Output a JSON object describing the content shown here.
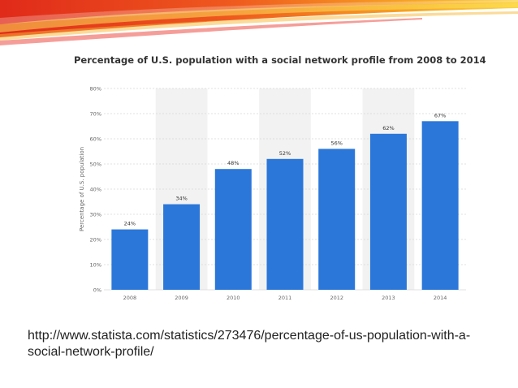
{
  "slide": {
    "source_url": "http://www.statista.com/statistics/273476/percentage-of-us-population-with-a-social-network-profile/"
  },
  "colors": {
    "bar": "#2b77d9",
    "banner_red": "#e8291c",
    "banner_orange": "#f6a21c",
    "banner_yellow": "#fbd63c",
    "band": "#f2f2f2"
  },
  "chart_data": {
    "type": "bar",
    "title": "Percentage of U.S. population with a social network profile from 2008 to 2014",
    "xlabel": "",
    "ylabel": "Percentage of U.S. population",
    "categories": [
      "2008",
      "2009",
      "2010",
      "2011",
      "2012",
      "2013",
      "2014"
    ],
    "values": [
      24,
      34,
      48,
      52,
      56,
      62,
      67
    ],
    "data_labels": [
      "24%",
      "34%",
      "48%",
      "52%",
      "56%",
      "62%",
      "67%"
    ],
    "ylim": [
      0,
      80
    ],
    "yticks": [
      0,
      10,
      20,
      30,
      40,
      50,
      60,
      70,
      80
    ],
    "ytick_labels": [
      "0%",
      "10%",
      "20%",
      "30%",
      "40%",
      "50%",
      "60%",
      "70%",
      "80%"
    ],
    "grid": true,
    "legend": "none"
  }
}
